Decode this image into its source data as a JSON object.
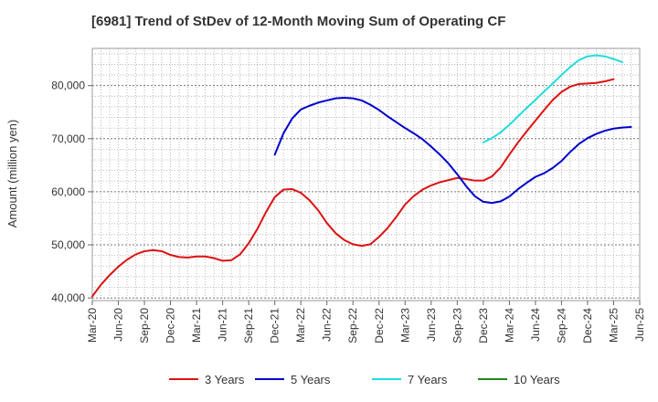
{
  "chart_data": {
    "type": "line",
    "title": "[6981]  Trend of StDev of 12-Month Moving Sum of Operating CF",
    "xlabel": "",
    "ylabel": "Amount (million yen)",
    "ylim": [
      39500,
      87000
    ],
    "yticks": [
      40000,
      50000,
      60000,
      70000,
      80000
    ],
    "ytick_labels": [
      "40,000",
      "50,000",
      "60,000",
      "70,000",
      "80,000"
    ],
    "x_start": "Mar-20",
    "x_end": "Jun-25",
    "xtick_labels": [
      "Mar-20",
      "Jun-20",
      "Sep-20",
      "Dec-20",
      "Mar-21",
      "Jun-21",
      "Sep-21",
      "Dec-21",
      "Mar-22",
      "Jun-22",
      "Sep-22",
      "Dec-22",
      "Mar-23",
      "Jun-23",
      "Sep-23",
      "Dec-23",
      "Mar-24",
      "Jun-24",
      "Sep-24",
      "Dec-24",
      "Mar-25",
      "Jun-25"
    ],
    "grid": true,
    "legend_position": "bottom",
    "series": [
      {
        "name": "3 Years",
        "color": "#dd1111",
        "start": "Mar-20",
        "values": [
          40300,
          42500,
          44300,
          45900,
          47200,
          48200,
          48800,
          49000,
          48800,
          48100,
          47700,
          47600,
          47800,
          47800,
          47500,
          47000,
          47100,
          48200,
          50300,
          53000,
          56200,
          59000,
          60400,
          60500,
          59800,
          58400,
          56500,
          54100,
          52200,
          50900,
          50100,
          49800,
          50100,
          51500,
          53200,
          55300,
          57600,
          59200,
          60400,
          61200,
          61800,
          62200,
          62600,
          62400,
          62100,
          62100,
          62900,
          64600,
          67000,
          69300,
          71400,
          73400,
          75400,
          77300,
          78800,
          79800,
          80300,
          80400,
          80500,
          80800,
          81200
        ]
      },
      {
        "name": "5 Years",
        "color": "#0000cc",
        "start": "Dec-21",
        "values": [
          67000,
          71000,
          73800,
          75500,
          76200,
          76800,
          77200,
          77600,
          77700,
          77600,
          77200,
          76400,
          75400,
          74200,
          73100,
          72000,
          71000,
          69900,
          68500,
          67000,
          65300,
          63300,
          61100,
          59200,
          58100,
          57900,
          58200,
          59100,
          60500,
          61700,
          62800,
          63500,
          64500,
          65800,
          67500,
          69000,
          70100,
          70900,
          71500,
          71900,
          72100,
          72200
        ]
      },
      {
        "name": "7 Years",
        "color": "#22dddd",
        "start": "Dec-23",
        "values": [
          69300,
          70100,
          71200,
          72600,
          74200,
          75800,
          77300,
          78900,
          80400,
          82000,
          83500,
          84800,
          85500,
          85700,
          85500,
          85000,
          84400
        ]
      },
      {
        "name": "10 Years",
        "color": "#228822",
        "start": "Mar-25",
        "values": []
      }
    ]
  }
}
